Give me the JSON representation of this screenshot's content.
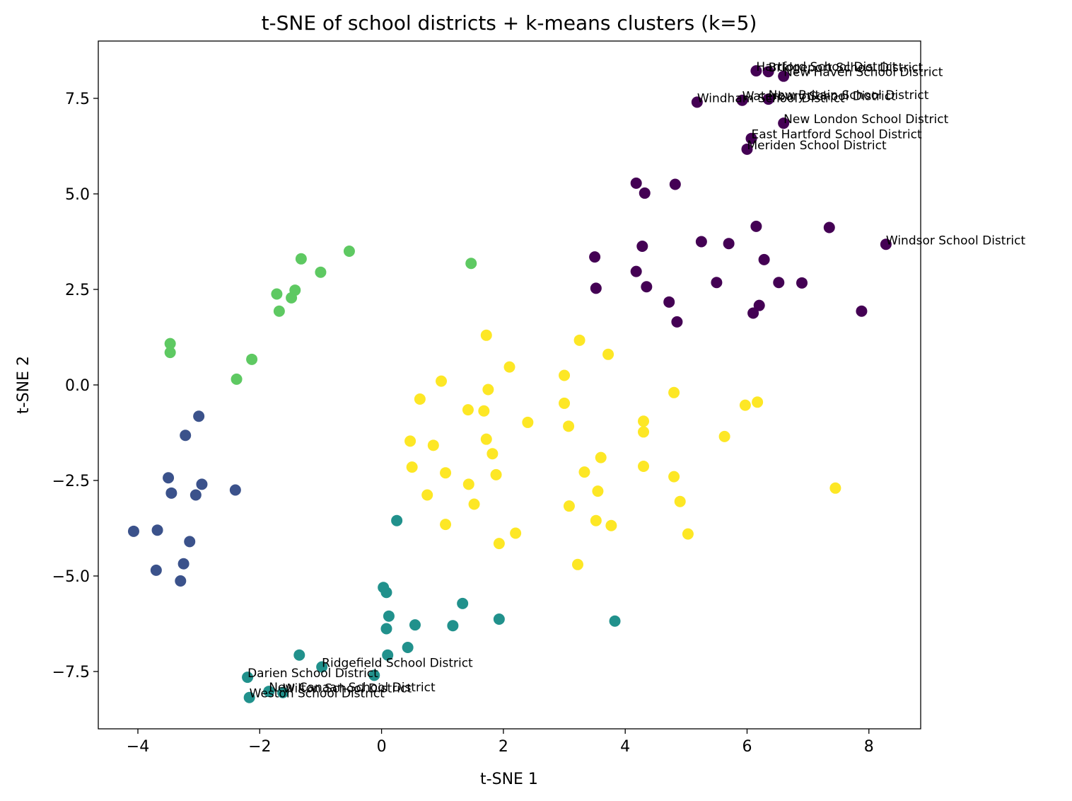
{
  "chart_data": {
    "type": "scatter",
    "title": "t-SNE of school districts + k-means clusters (k=5)",
    "xlabel": "t-SNE 1",
    "ylabel": "t-SNE 2",
    "xlim": [
      -4.65,
      8.85
    ],
    "ylim": [
      -9.0,
      9.0
    ],
    "xticks": [
      -4,
      -2,
      0,
      2,
      4,
      6,
      8
    ],
    "xtick_labels": [
      "−4",
      "−2",
      "0",
      "2",
      "4",
      "6",
      "8"
    ],
    "yticks": [
      -7.5,
      -5.0,
      -2.5,
      0.0,
      2.5,
      5.0,
      7.5
    ],
    "ytick_labels": [
      "−7.5",
      "−5.0",
      "−2.5",
      "0.0",
      "2.5",
      "5.0",
      "7.5"
    ],
    "grid": false,
    "legend": "none",
    "series": [
      {
        "color": "#440154",
        "points": [
          [
            6.15,
            8.22
          ],
          [
            6.35,
            8.2
          ],
          [
            6.6,
            8.08
          ],
          [
            5.18,
            7.4
          ],
          [
            5.92,
            7.45
          ],
          [
            6.35,
            7.48
          ],
          [
            6.6,
            6.85
          ],
          [
            6.07,
            6.45
          ],
          [
            6.0,
            6.17
          ],
          [
            4.18,
            5.28
          ],
          [
            4.82,
            5.25
          ],
          [
            4.32,
            5.02
          ],
          [
            6.15,
            4.15
          ],
          [
            7.35,
            4.12
          ],
          [
            8.28,
            3.68
          ],
          [
            5.25,
            3.75
          ],
          [
            5.7,
            3.7
          ],
          [
            4.28,
            3.63
          ],
          [
            3.5,
            3.35
          ],
          [
            6.28,
            3.28
          ],
          [
            4.18,
            2.97
          ],
          [
            5.5,
            2.68
          ],
          [
            6.52,
            2.68
          ],
          [
            6.9,
            2.67
          ],
          [
            3.52,
            2.53
          ],
          [
            4.35,
            2.57
          ],
          [
            4.72,
            2.17
          ],
          [
            6.2,
            2.08
          ],
          [
            6.1,
            1.88
          ],
          [
            7.88,
            1.93
          ],
          [
            4.85,
            1.65
          ]
        ]
      },
      {
        "color": "#3b528b",
        "points": [
          [
            -3.0,
            -0.82
          ],
          [
            -3.22,
            -1.32
          ],
          [
            -3.5,
            -2.43
          ],
          [
            -2.95,
            -2.6
          ],
          [
            -3.45,
            -2.83
          ],
          [
            -3.05,
            -2.88
          ],
          [
            -2.4,
            -2.75
          ],
          [
            -4.07,
            -3.83
          ],
          [
            -3.68,
            -3.8
          ],
          [
            -3.15,
            -4.1
          ],
          [
            -3.7,
            -4.85
          ],
          [
            -3.25,
            -4.68
          ],
          [
            -3.3,
            -5.13
          ]
        ]
      },
      {
        "color": "#21918c",
        "points": [
          [
            0.25,
            -3.55
          ],
          [
            0.03,
            -5.3
          ],
          [
            0.08,
            -5.43
          ],
          [
            1.33,
            -5.72
          ],
          [
            0.12,
            -6.05
          ],
          [
            0.55,
            -6.28
          ],
          [
            1.17,
            -6.3
          ],
          [
            1.93,
            -6.13
          ],
          [
            3.83,
            -6.18
          ],
          [
            0.08,
            -6.38
          ],
          [
            0.43,
            -6.87
          ],
          [
            0.1,
            -7.07
          ],
          [
            -1.35,
            -7.07
          ],
          [
            -0.98,
            -7.38
          ],
          [
            -0.12,
            -7.6
          ],
          [
            -2.2,
            -7.65
          ],
          [
            -1.85,
            -8.02
          ],
          [
            -1.62,
            -8.05
          ],
          [
            -2.17,
            -8.18
          ]
        ]
      },
      {
        "color": "#5ec962",
        "points": [
          [
            -0.53,
            3.5
          ],
          [
            -1.32,
            3.3
          ],
          [
            1.47,
            3.18
          ],
          [
            -1.0,
            2.95
          ],
          [
            -1.42,
            2.48
          ],
          [
            -1.72,
            2.38
          ],
          [
            -1.48,
            2.28
          ],
          [
            -1.68,
            1.93
          ],
          [
            -3.47,
            1.08
          ],
          [
            -3.47,
            0.85
          ],
          [
            -2.13,
            0.67
          ],
          [
            -2.38,
            0.15
          ]
        ]
      },
      {
        "color": "#fde725",
        "points": [
          [
            1.72,
            1.3
          ],
          [
            3.25,
            1.17
          ],
          [
            3.72,
            0.8
          ],
          [
            2.1,
            0.47
          ],
          [
            3.0,
            0.25
          ],
          [
            0.98,
            0.1
          ],
          [
            1.75,
            -0.12
          ],
          [
            4.8,
            -0.2
          ],
          [
            0.63,
            -0.37
          ],
          [
            3.0,
            -0.48
          ],
          [
            5.97,
            -0.53
          ],
          [
            6.17,
            -0.45
          ],
          [
            1.42,
            -0.65
          ],
          [
            1.68,
            -0.68
          ],
          [
            2.4,
            -0.98
          ],
          [
            3.07,
            -1.08
          ],
          [
            4.3,
            -0.95
          ],
          [
            4.3,
            -1.23
          ],
          [
            5.63,
            -1.35
          ],
          [
            0.47,
            -1.47
          ],
          [
            1.72,
            -1.42
          ],
          [
            0.85,
            -1.58
          ],
          [
            1.82,
            -1.8
          ],
          [
            3.6,
            -1.9
          ],
          [
            0.5,
            -2.15
          ],
          [
            1.05,
            -2.3
          ],
          [
            3.33,
            -2.28
          ],
          [
            4.3,
            -2.13
          ],
          [
            1.88,
            -2.35
          ],
          [
            4.8,
            -2.4
          ],
          [
            1.43,
            -2.6
          ],
          [
            0.75,
            -2.88
          ],
          [
            3.55,
            -2.78
          ],
          [
            7.45,
            -2.7
          ],
          [
            1.52,
            -3.12
          ],
          [
            3.08,
            -3.17
          ],
          [
            4.9,
            -3.05
          ],
          [
            1.05,
            -3.65
          ],
          [
            3.52,
            -3.55
          ],
          [
            3.77,
            -3.68
          ],
          [
            2.2,
            -3.88
          ],
          [
            1.93,
            -4.15
          ],
          [
            5.03,
            -3.9
          ],
          [
            3.22,
            -4.7
          ]
        ]
      }
    ],
    "annotations": [
      {
        "text": "Hartford School District",
        "x": 6.15,
        "y": 8.22
      },
      {
        "text": "Bridgeport School District",
        "x": 6.35,
        "y": 8.2
      },
      {
        "text": "New Haven School District",
        "x": 6.6,
        "y": 8.08
      },
      {
        "text": "Windham School District",
        "x": 5.18,
        "y": 7.4
      },
      {
        "text": "Waterbury School District",
        "x": 5.92,
        "y": 7.45
      },
      {
        "text": "New Britain School District",
        "x": 6.35,
        "y": 7.48
      },
      {
        "text": "New London School District",
        "x": 6.6,
        "y": 6.85
      },
      {
        "text": "East Hartford School District",
        "x": 6.07,
        "y": 6.45
      },
      {
        "text": "Meriden School District",
        "x": 6.0,
        "y": 6.17
      },
      {
        "text": "Windsor School District",
        "x": 8.28,
        "y": 3.68
      },
      {
        "text": "Ridgefield School District",
        "x": -0.98,
        "y": -7.38
      },
      {
        "text": "Darien School District",
        "x": -2.2,
        "y": -7.65
      },
      {
        "text": "New Canaan School District",
        "x": -1.85,
        "y": -8.02
      },
      {
        "text": "Wilton School District",
        "x": -1.62,
        "y": -8.05
      },
      {
        "text": "Weston School District",
        "x": -2.17,
        "y": -8.18
      }
    ]
  }
}
